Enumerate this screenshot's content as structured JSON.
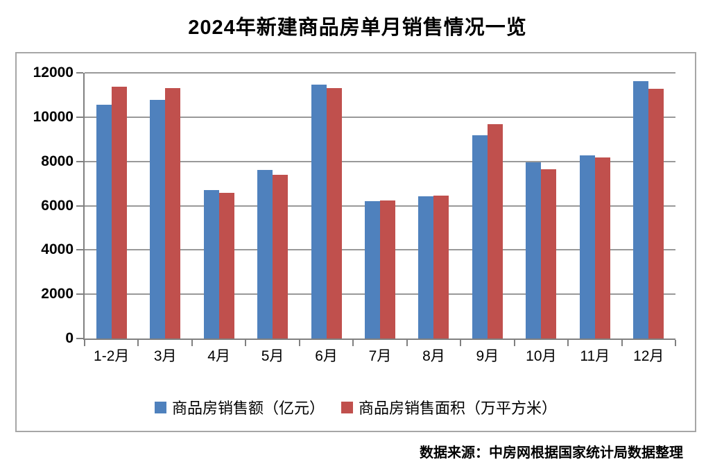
{
  "title": "2024年新建商品房单月销售情况一览",
  "source_note": "数据来源：中房网根据国家统计局数据整理",
  "colors": {
    "series1": "#4F81BD",
    "series2": "#C0504D",
    "gridline": "#999999",
    "axis": "#808080",
    "frame_border": "#A6A6A6",
    "title_text": "#000000"
  },
  "chart_data": {
    "type": "bar",
    "title": "2024年新建商品房单月销售情况一览",
    "categories": [
      "1-2月",
      "3月",
      "4月",
      "5月",
      "6月",
      "7月",
      "8月",
      "9月",
      "10月",
      "11月",
      "12月"
    ],
    "series": [
      {
        "name": "商品房销售额（亿元）",
        "color": "#4F81BD",
        "values": [
          10570,
          10790,
          6710,
          7600,
          11470,
          6210,
          6420,
          9170,
          7960,
          8280,
          11630
        ]
      },
      {
        "name": "商品房销售面积（万平方米）",
        "color": "#C0504D",
        "values": [
          11380,
          11300,
          6580,
          7410,
          11300,
          6250,
          6470,
          9680,
          7640,
          8180,
          11270
        ]
      }
    ],
    "xlabel": "",
    "ylabel": "",
    "ylim": [
      0,
      12000
    ],
    "yticks": [
      0,
      2000,
      4000,
      6000,
      8000,
      10000,
      12000
    ],
    "grid": true,
    "legend_position": "bottom-center"
  }
}
